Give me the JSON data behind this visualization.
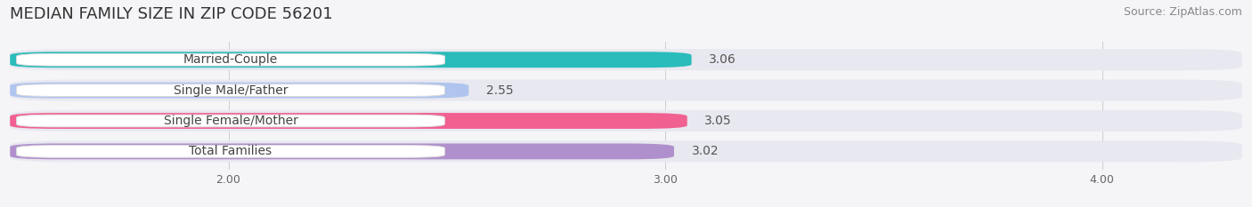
{
  "title": "MEDIAN FAMILY SIZE IN ZIP CODE 56201",
  "source": "Source: ZipAtlas.com",
  "categories": [
    "Married-Couple",
    "Single Male/Father",
    "Single Female/Mother",
    "Total Families"
  ],
  "values": [
    3.06,
    2.55,
    3.05,
    3.02
  ],
  "bar_colors": [
    "#2abcba",
    "#afc4ee",
    "#f06090",
    "#b090cc"
  ],
  "bar_bg_color": "#e8e8f0",
  "xlim_min": 1.5,
  "xlim_max": 4.32,
  "xticks": [
    2.0,
    3.0,
    4.0
  ],
  "xtick_labels": [
    "2.00",
    "3.00",
    "4.00"
  ],
  "background_color": "#f5f5f8",
  "title_fontsize": 13,
  "source_fontsize": 9,
  "bar_label_fontsize": 10,
  "category_fontsize": 10,
  "tick_fontsize": 9
}
